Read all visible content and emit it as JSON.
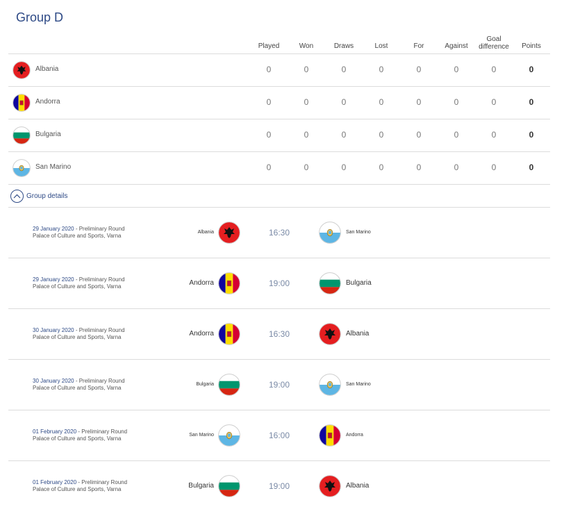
{
  "group": {
    "title": "Group D"
  },
  "table": {
    "headers": [
      "Played",
      "Won",
      "Draws",
      "Lost",
      "For",
      "Against",
      "Goal difference",
      "Points"
    ],
    "header_lines": [
      [
        "Played"
      ],
      [
        "Won"
      ],
      [
        "Draws"
      ],
      [
        "Lost"
      ],
      [
        "For"
      ],
      [
        "Against"
      ],
      [
        "Goal",
        "difference"
      ],
      [
        "Points"
      ]
    ],
    "rows": [
      {
        "team": "Albania",
        "flag": "albania-flag-icon",
        "values": [
          "0",
          "0",
          "0",
          "0",
          "0",
          "0",
          "0",
          "0"
        ]
      },
      {
        "team": "Andorra",
        "flag": "andorra-flag-icon",
        "values": [
          "0",
          "0",
          "0",
          "0",
          "0",
          "0",
          "0",
          "0"
        ]
      },
      {
        "team": "Bulgaria",
        "flag": "bulgaria-flag-icon",
        "values": [
          "0",
          "0",
          "0",
          "0",
          "0",
          "0",
          "0",
          "0"
        ]
      },
      {
        "team": "San Marino",
        "flag": "san-marino-flag-icon",
        "values": [
          "0",
          "0",
          "0",
          "0",
          "0",
          "0",
          "0",
          "0"
        ]
      }
    ]
  },
  "details": {
    "label": "Group details",
    "icon": "chevron-up-icon"
  },
  "matches": [
    {
      "date": "29 January 2020",
      "round": " - Preliminary Round",
      "venue": "Palace of Culture and Sports, Varna",
      "home": "Albania",
      "home_flag": "albania-flag-icon",
      "time": "16:30",
      "away": "San Marino",
      "away_flag": "san-marino-flag-icon",
      "home_size": "small",
      "away_size": "small"
    },
    {
      "date": "29 January 2020",
      "round": " - Preliminary Round",
      "venue": "Palace of Culture and Sports, Varna",
      "home": "Andorra",
      "home_flag": "andorra-flag-icon",
      "time": "19:00",
      "away": "Bulgaria",
      "away_flag": "bulgaria-flag-icon",
      "home_size": "big",
      "away_size": "big"
    },
    {
      "date": "30 January 2020",
      "round": " - Preliminary Round",
      "venue": "Palace of Culture and Sports, Varna",
      "home": "Andorra",
      "home_flag": "andorra-flag-icon",
      "time": "16:30",
      "away": "Albania",
      "away_flag": "albania-flag-icon",
      "home_size": "big",
      "away_size": "big"
    },
    {
      "date": "30 January 2020",
      "round": " - Preliminary Round",
      "venue": "Palace of Culture and Sports, Varna",
      "home": "Bulgaria",
      "home_flag": "bulgaria-flag-icon",
      "time": "19:00",
      "away": "San Marino",
      "away_flag": "san-marino-flag-icon",
      "home_size": "small",
      "away_size": "small"
    },
    {
      "date": "01 February 2020",
      "round": " - Preliminary Round",
      "venue": "Palace of Culture and Sports, Varna",
      "home": "San Marino",
      "home_flag": "san-marino-flag-icon",
      "time": "16:00",
      "away": "Andorra",
      "away_flag": "andorra-flag-icon",
      "home_size": "small",
      "away_size": "small"
    },
    {
      "date": "01 February 2020",
      "round": " - Preliminary Round",
      "venue": "Palace of Culture and Sports, Varna",
      "home": "Bulgaria",
      "home_flag": "bulgaria-flag-icon",
      "time": "19:00",
      "away": "Albania",
      "away_flag": "albania-flag-icon",
      "home_size": "big",
      "away_size": "big"
    }
  ],
  "colors": {
    "accent": "#2e4a86",
    "time": "#7a8aa6",
    "divider": "#dcdcdc"
  }
}
